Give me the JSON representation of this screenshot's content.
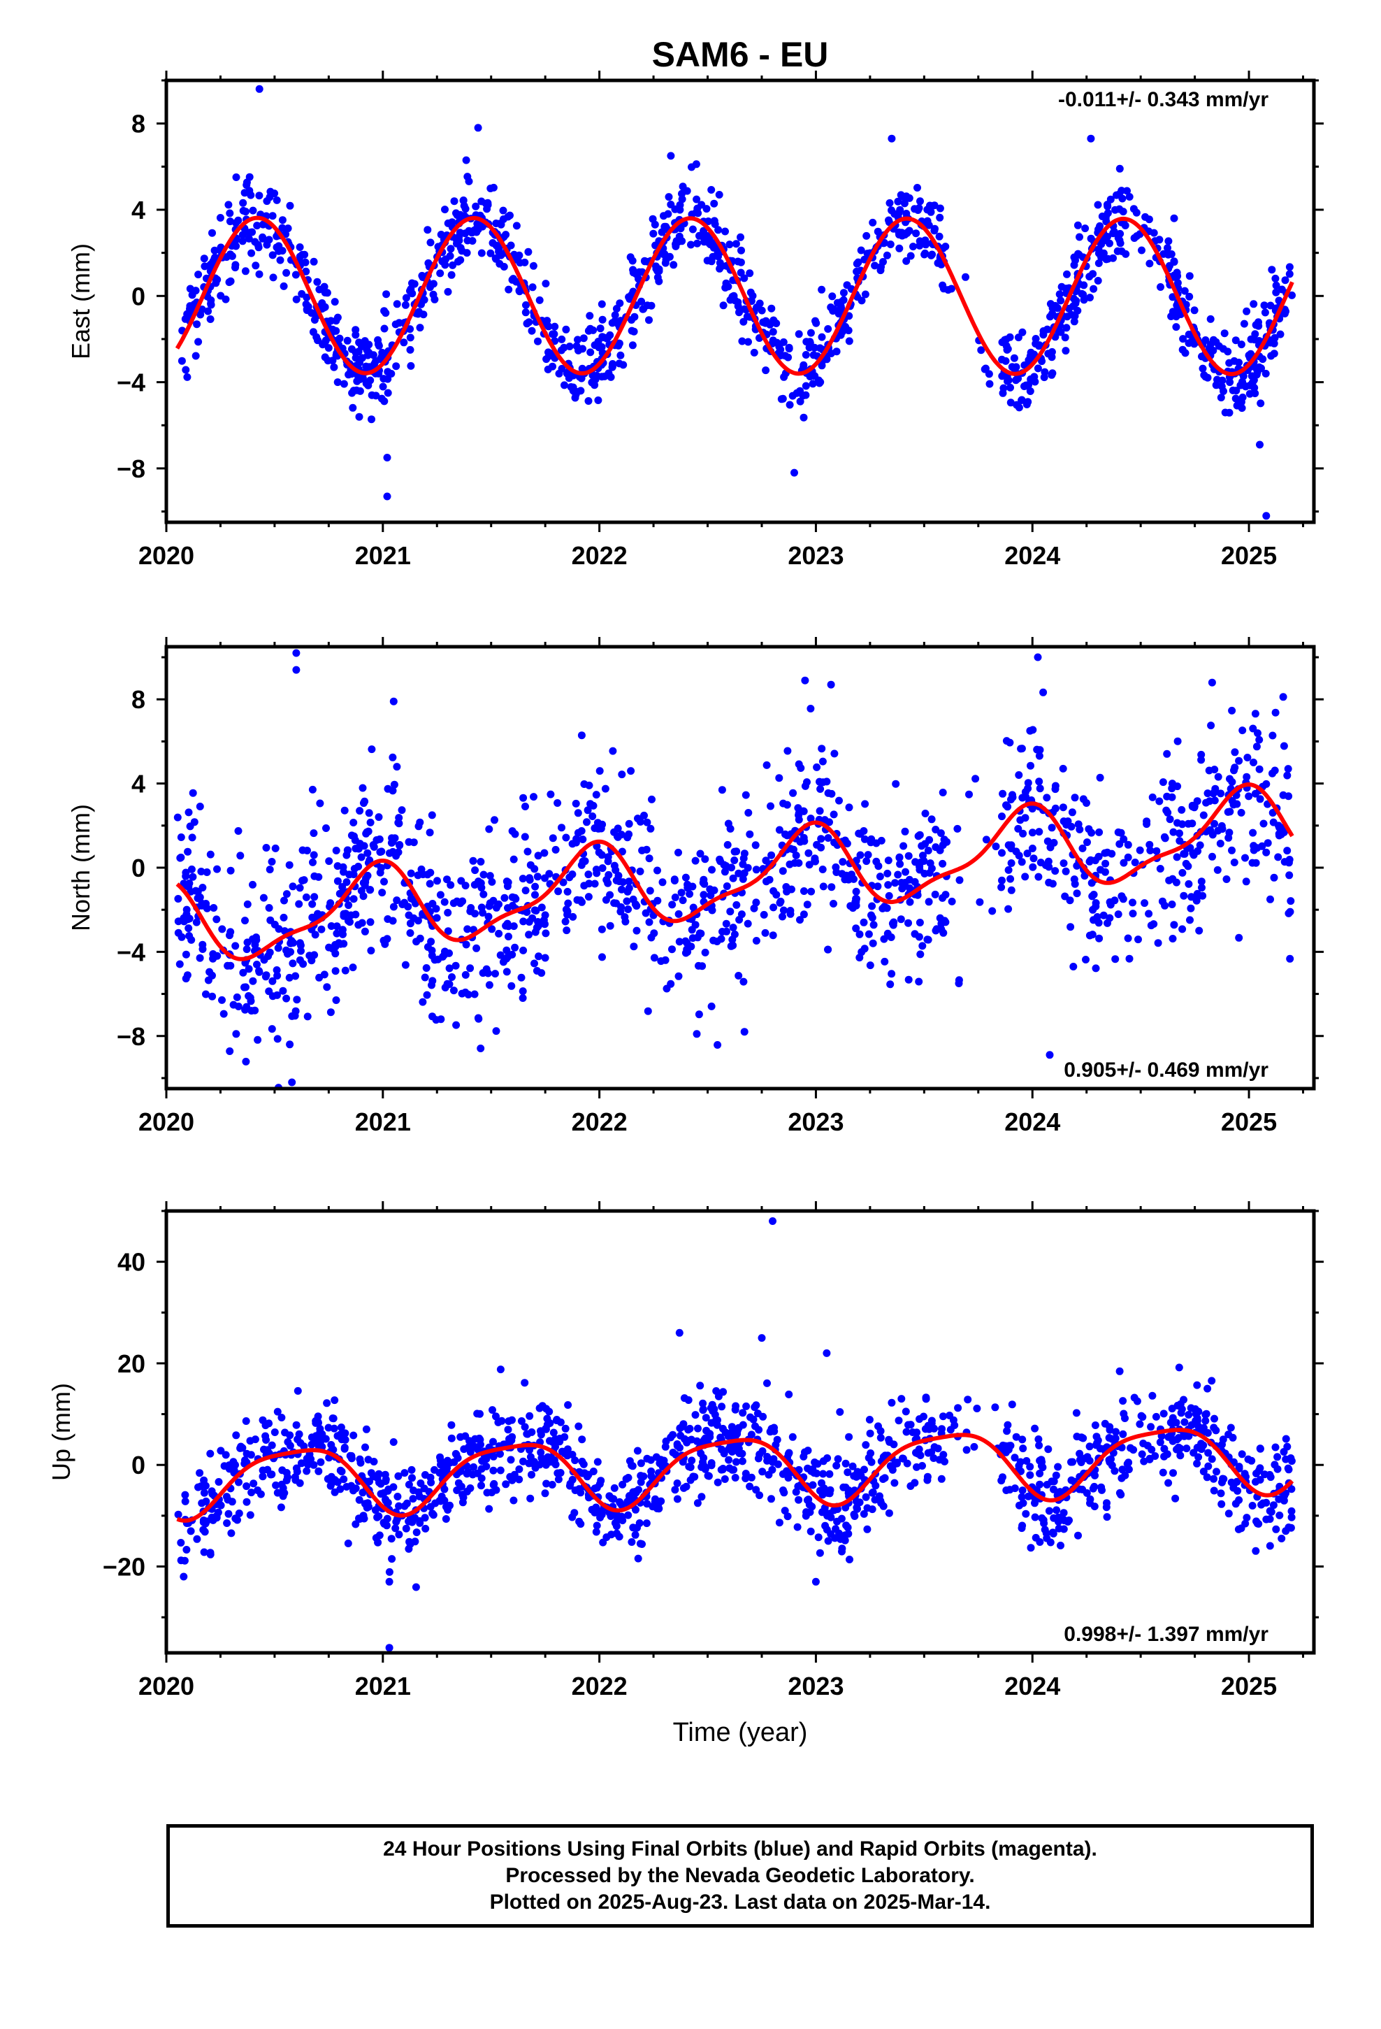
{
  "title": "SAM6 - EU",
  "xlabel": "Time (year)",
  "colors": {
    "data": "#0000ff",
    "model": "#ff0000",
    "frame": "#000000"
  },
  "footer": {
    "line1": "24 Hour Positions Using Final Orbits (blue) and Rapid Orbits (magenta).",
    "line2": "Processed by the Nevada Geodetic Laboratory.",
    "line3": "Plotted on 2025-Aug-23. Last data on 2025-Mar-14."
  },
  "chart_data": [
    {
      "type": "scatter",
      "ylabel": "East (mm)",
      "rate": "-0.011+/- 0.343 mm/yr",
      "xlim": [
        2020,
        2025.3
      ],
      "ylim": [
        -10.5,
        10
      ],
      "xticks": [
        2020,
        2021,
        2022,
        2023,
        2024,
        2025
      ],
      "xtick_labels": [
        "2020",
        "2021",
        "2022",
        "2023",
        "2024",
        "2025"
      ],
      "yticks": [
        -8,
        -4,
        0,
        4,
        8
      ],
      "ytick_labels": [
        "−8",
        "−4",
        "0",
        "4",
        "8"
      ],
      "model": {
        "description": "seasonal fit",
        "amplitude": 3.6,
        "phase_peak": 0.42,
        "trend": -0.011
      },
      "x_range": [
        2020.05,
        2025.2
      ],
      "outliers": [
        [
          2020.43,
          9.6
        ],
        [
          2021.02,
          -9.3
        ],
        [
          2021.02,
          -7.5
        ],
        [
          2021.44,
          7.8
        ],
        [
          2022.33,
          6.5
        ],
        [
          2022.9,
          -8.2
        ],
        [
          2023.35,
          7.3
        ],
        [
          2024.27,
          7.3
        ],
        [
          2025.08,
          -10.2
        ],
        [
          2025.05,
          -6.9
        ]
      ]
    },
    {
      "type": "scatter",
      "ylabel": "North (mm)",
      "rate": "0.905+/- 0.469 mm/yr",
      "xlim": [
        2020,
        2025.3
      ],
      "ylim": [
        -10.5,
        10.5
      ],
      "xticks": [
        2020,
        2021,
        2022,
        2023,
        2024,
        2025
      ],
      "xtick_labels": [
        "2020",
        "2021",
        "2022",
        "2023",
        "2024",
        "2025"
      ],
      "yticks": [
        -8,
        -4,
        0,
        4,
        8
      ],
      "ytick_labels": [
        "−8",
        "−4",
        "0",
        "4",
        "8"
      ],
      "model": {
        "description": "trend + seasonal fit",
        "amplitude": 1.8,
        "phase_peak": 0.95,
        "trend": 0.905
      },
      "x_range": [
        2020.05,
        2025.2
      ],
      "outliers": [
        [
          2020.6,
          10.2
        ],
        [
          2020.6,
          9.4
        ],
        [
          2020.58,
          -10.2
        ],
        [
          2020.57,
          -8.4
        ],
        [
          2021.05,
          7.9
        ],
        [
          2022.45,
          -7.9
        ],
        [
          2022.67,
          -7.8
        ],
        [
          2022.95,
          8.9
        ],
        [
          2023.07,
          8.7
        ],
        [
          2024.08,
          -8.9
        ],
        [
          2024.83,
          8.8
        ]
      ]
    },
    {
      "type": "scatter",
      "ylabel": "Up (mm)",
      "rate": "0.998+/- 1.397 mm/yr",
      "xlim": [
        2020,
        2025.3
      ],
      "ylim": [
        -37,
        50
      ],
      "xticks": [
        2020,
        2021,
        2022,
        2023,
        2024,
        2025
      ],
      "xtick_labels": [
        "2020",
        "2021",
        "2022",
        "2023",
        "2024",
        "2025"
      ],
      "yticks": [
        -20,
        0,
        20,
        40
      ],
      "ytick_labels": [
        "−20",
        "0",
        "20",
        "40"
      ],
      "model": {
        "description": "trend + seasonal fit",
        "amplitude": 6.5,
        "phase_peak": 0.6,
        "trend": 0.998
      },
      "x_range": [
        2020.05,
        2025.2
      ],
      "outliers": [
        [
          2022.8,
          48
        ],
        [
          2021.03,
          -36
        ],
        [
          2021.03,
          -23
        ],
        [
          2022.37,
          26
        ],
        [
          2022.75,
          25
        ],
        [
          2023.0,
          -23
        ],
        [
          2023.05,
          22
        ],
        [
          2020.08,
          -22
        ],
        [
          2025.17,
          -13
        ]
      ]
    }
  ]
}
